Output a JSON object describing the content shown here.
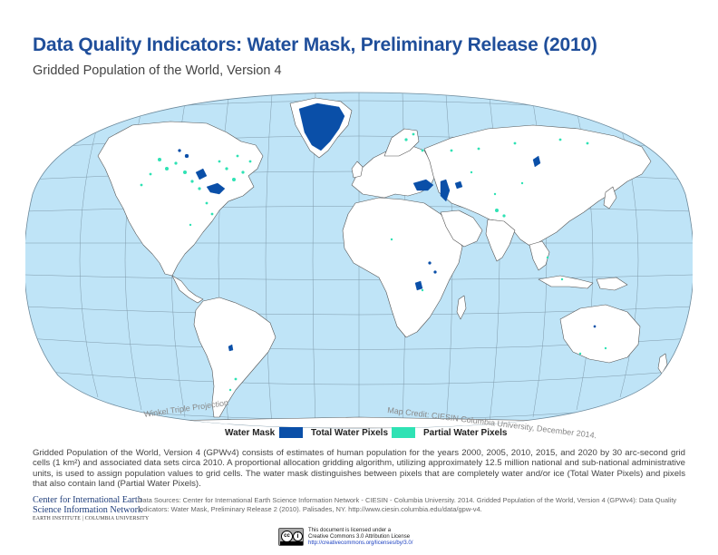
{
  "header": {
    "title": "Data Quality Indicators: Water Mask, Preliminary Release (2010)",
    "subtitle": "Gridded Population of the World, Version 4"
  },
  "map": {
    "projection_label": "Winkel Triple Projection",
    "credit_label": "Map Credit: CIESIN Columbia University, December 2014.",
    "ocean_color": "#bfe4f7",
    "land_color": "#ffffff",
    "border_color": "#555555",
    "graticule_color": "#7f9aab"
  },
  "legend": {
    "title": "Water Mask",
    "items": [
      {
        "label": "Total Water Pixels",
        "color": "#0a4fa8"
      },
      {
        "label": "Partial Water Pixels",
        "color": "#2fe2b4"
      }
    ]
  },
  "description": "Gridded Population of the World, Version 4 (GPWv4) consists of estimates of human population for the years 2000, 2005, 2010, 2015, and 2020 by 30 arc-second grid cells (1 km²) and associated data sets circa 2010. A proportional allocation gridding algorithm, utilizing approximately 12.5 million national and sub-national administrative units, is used to assign population values to grid cells. The water mask distinguishes between pixels that are completely water and/or ice (Total Water Pixels) and pixels that also contain  land (Partial Water Pixels).",
  "footer": {
    "org_line1": "Center for International Earth",
    "org_line2": "Science Information Network",
    "org_line3": "EARTH INSTITUTE | COLUMBIA UNIVERSITY",
    "sources": "Data Sources: Center for International Earth Science Information Network - CIESIN - Columbia University. 2014. Gridded Population of the World, Version 4 (GPWv4): Data Quality Indicators: Water Mask, Preliminary Release 2 (2010). Palisades, NY. http://www.ciesin.columbia.edu/data/gpw-v4.",
    "license_line1": "This document is licensed under a",
    "license_line2": "Creative Commons 3.0 Attribution License",
    "license_url": "http://creativecommons.org/licenses/by/3.0/"
  }
}
